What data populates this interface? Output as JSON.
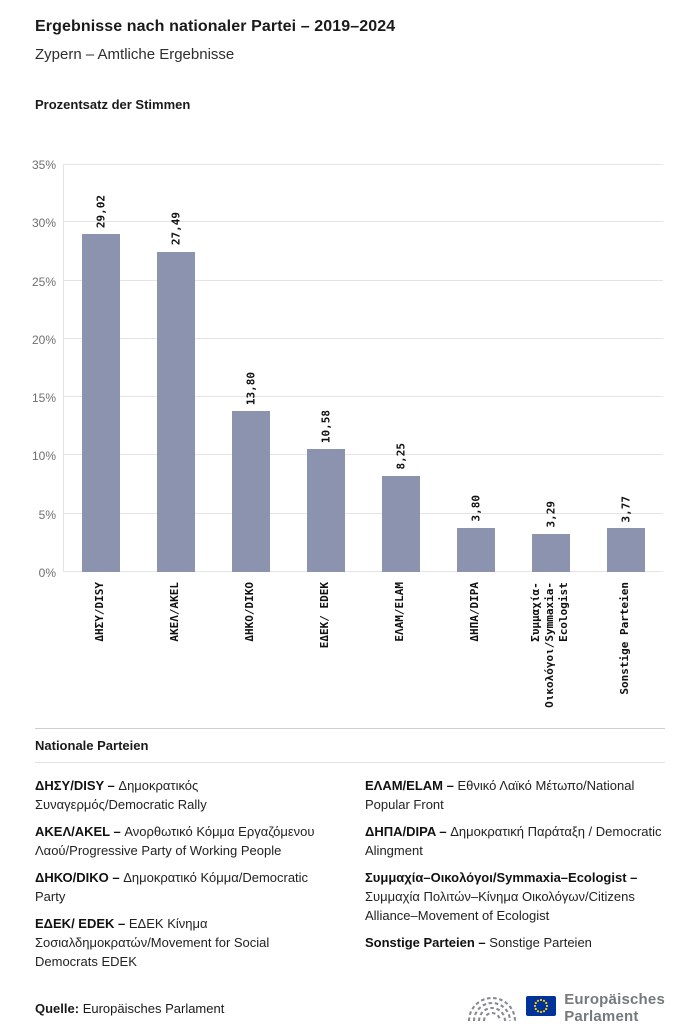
{
  "header": {
    "title": "Ergebnisse nach nationaler Partei – 2019–2024",
    "subtitle": "Zypern – Amtliche Ergebnisse"
  },
  "chart_heading": "Prozentsatz der Stimmen",
  "chart_data": {
    "type": "bar",
    "title": "Prozentsatz der Stimmen",
    "categories": [
      "ΔΗΣΥ/DISY",
      "ΑΚΕΛ/AKEL",
      "ΔΗΚΟ/DIKO",
      "ΕΔΕΚ/ EDEK",
      "ΕΛΑΜ/ELAM",
      "ΔΗΠΑ/DIPA",
      "Συμμαχία-\nΟικολόγοι/Symmaxia-\nEcologist",
      "Sonstige Parteien"
    ],
    "values": [
      29.02,
      27.49,
      13.8,
      10.58,
      8.25,
      3.8,
      3.29,
      3.77
    ],
    "value_labels": [
      "29,02",
      "27,49",
      "13,80",
      "10,58",
      "8,25",
      "3,80",
      "3,29",
      "3,77"
    ],
    "xlabel": "",
    "ylabel": "Prozentsatz der Stimmen",
    "ylim": [
      0,
      35
    ],
    "yticks": [
      0,
      5,
      10,
      15,
      20,
      25,
      30,
      35
    ],
    "ytick_suffix": "%",
    "grid": true,
    "legend_position": "none",
    "bar_color": "#8b93ae"
  },
  "parties": {
    "heading": "Nationale Parteien",
    "left": [
      {
        "name": "ΔΗΣΥ/DISY –",
        "desc": "Δημοκρατικός Συναγερμός/Democratic Rally"
      },
      {
        "name": "ΑΚΕΛ/AKEL  –",
        "desc": "Ανορθωτικό Κόμμα Εργαζόμενου Λαού/Progressive Party of Working People"
      },
      {
        "name": "ΔΗΚΟ/DIKO –",
        "desc": "Δημοκρατικό Κόμμα/Democratic Party"
      },
      {
        "name": "ΕΔΕΚ/ EDEK –",
        "desc": "ΕΔΕΚ Κίνημα Σοσιαλδημοκρατών/Movement for Social Democrats EDEK"
      }
    ],
    "right": [
      {
        "name": "ΕΛΑΜ/ELAM –",
        "desc": "Εθνικό Λαϊκό Μέτωπο/National Popular Front"
      },
      {
        "name": "ΔΗΠΑ/DIPA –",
        "desc": "Δημοκρατική Παράταξη / Democratic Alingment"
      },
      {
        "name": "Συμμαχία–Οικολόγοι/Symmaxia–Ecologist –",
        "desc": "Συμμαχία Πολιτών–Κίνημα Οικολόγων/Citizens Alliance–Movement of Ecologist"
      },
      {
        "name": "Sonstige Parteien –",
        "desc": "Sonstige Parteien"
      }
    ]
  },
  "footer": {
    "source_label": "Quelle:",
    "source_value": "Europäisches Parlament",
    "logo": {
      "line1": "Europäisches",
      "line2": "Parlament"
    }
  }
}
